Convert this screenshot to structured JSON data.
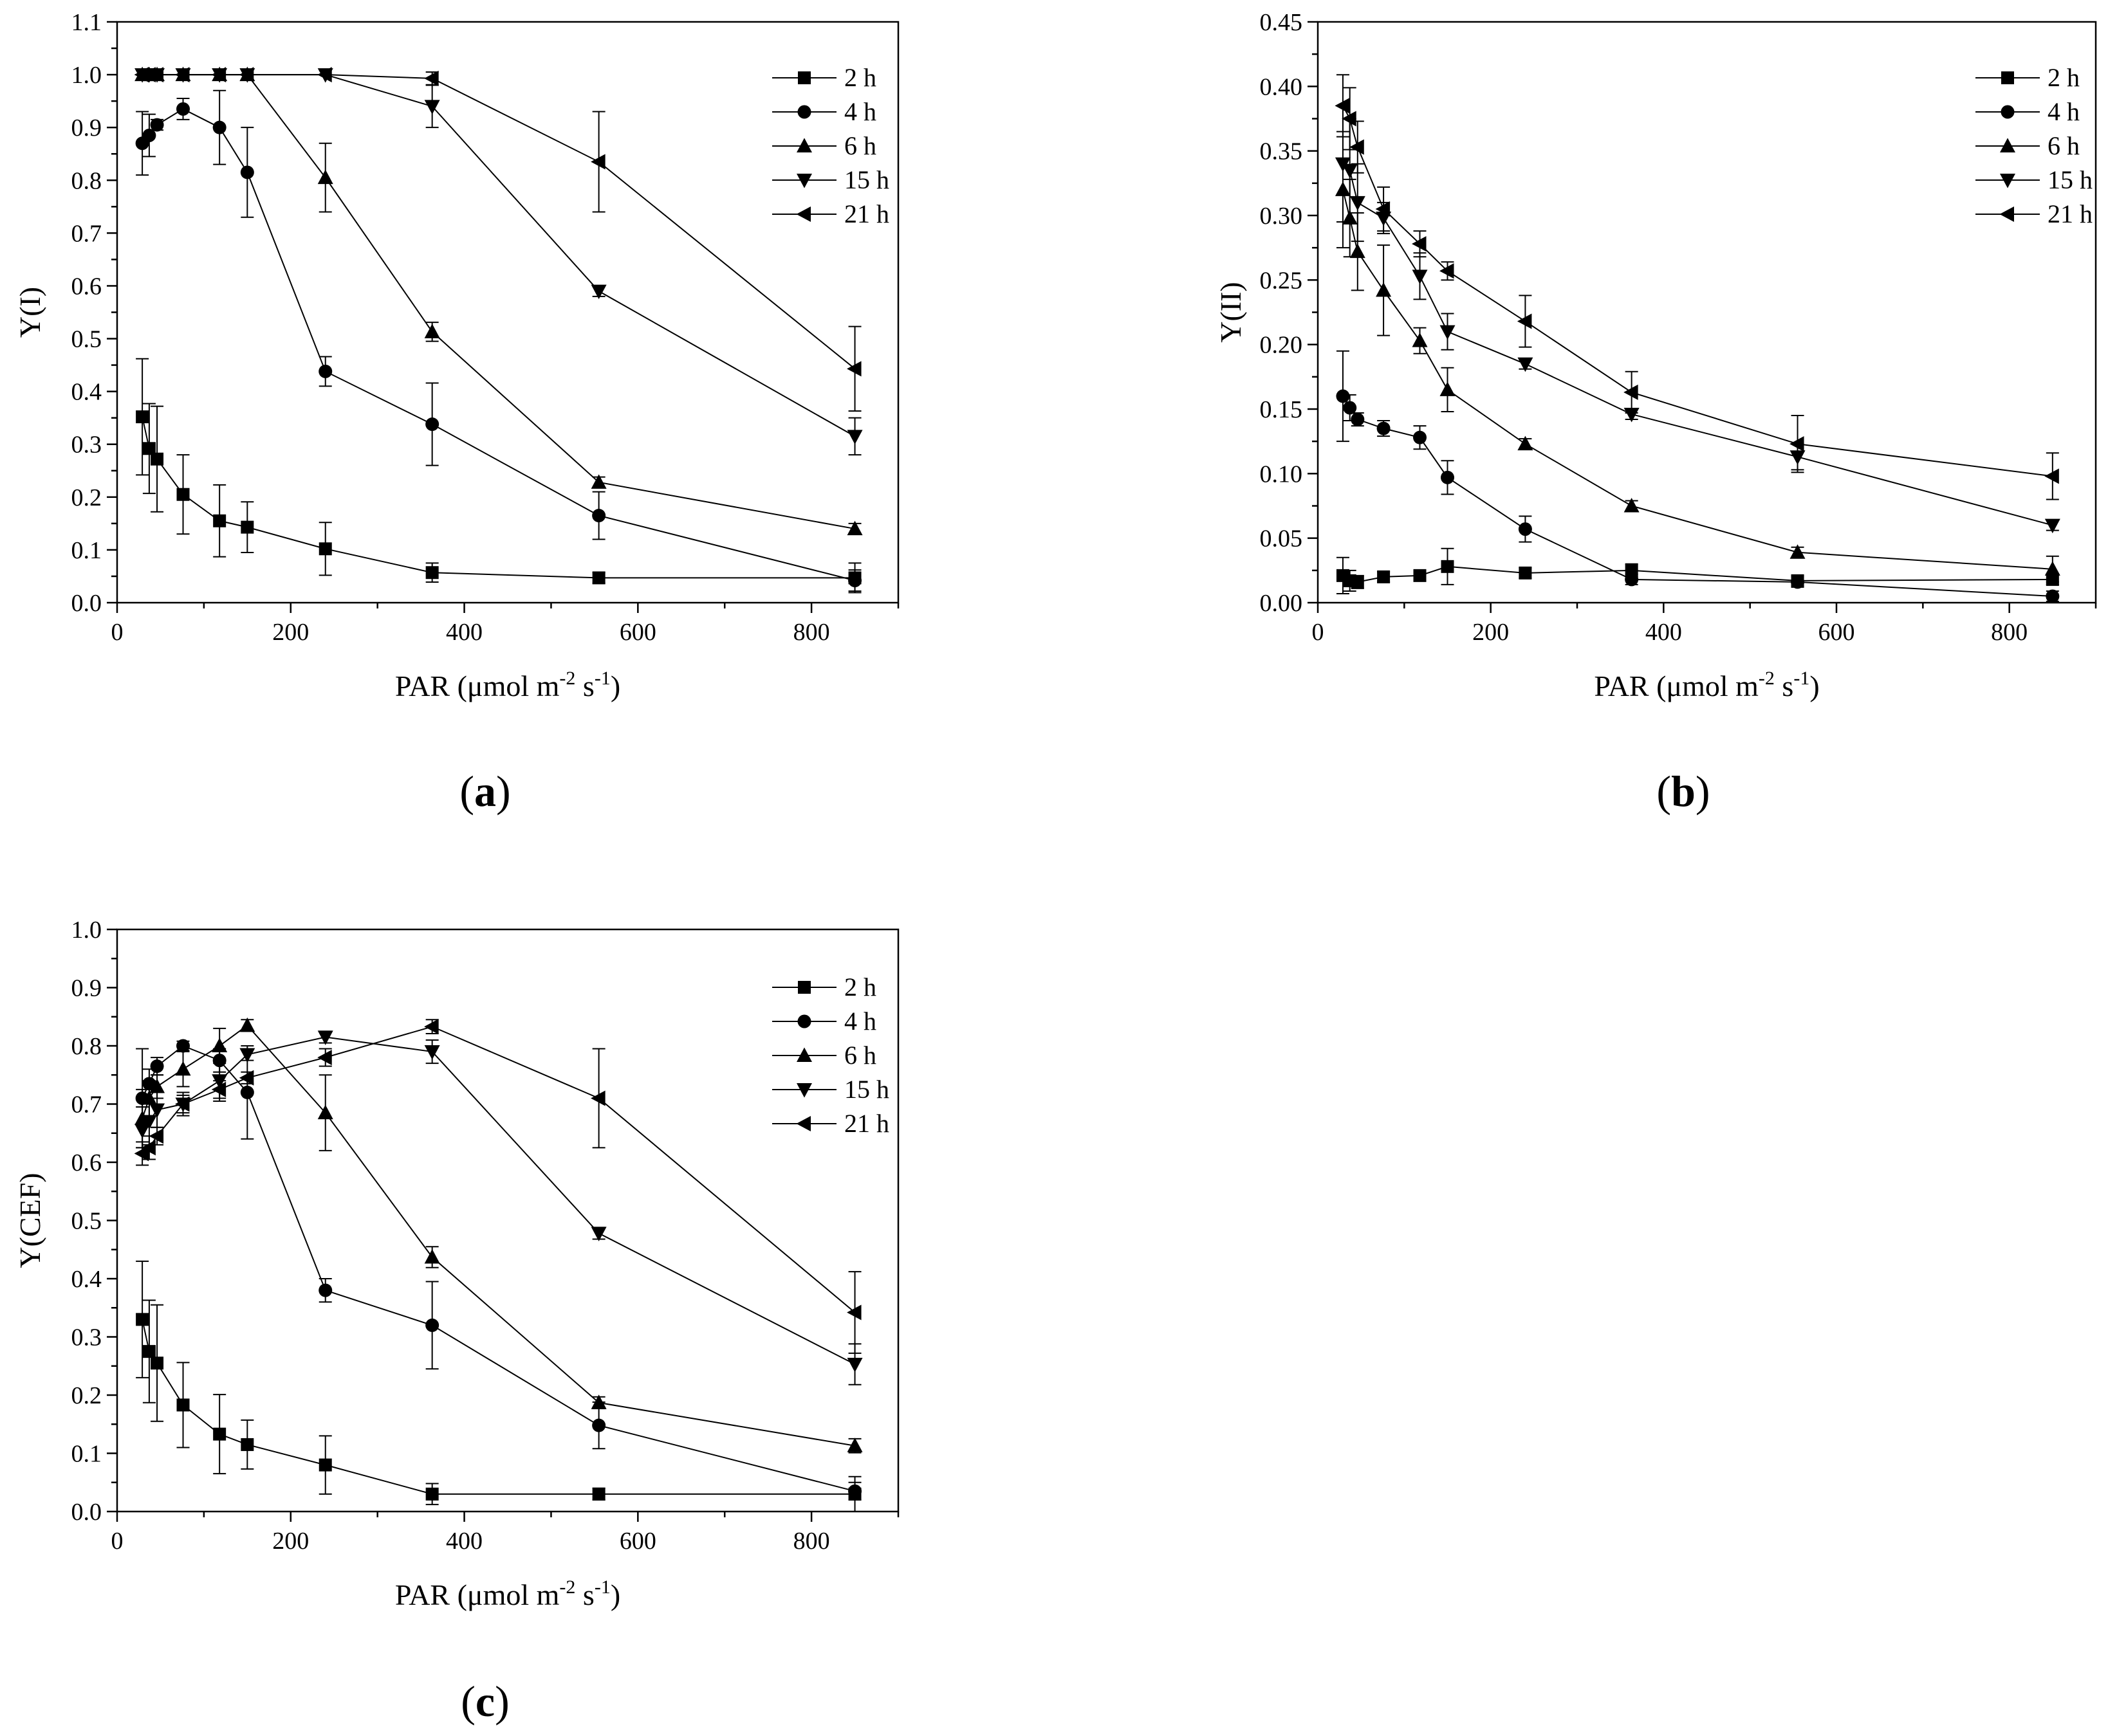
{
  "chart_data": [
    {
      "id": "a",
      "type": "line",
      "panel_label": "a",
      "ylabel": "Y(I)",
      "xlabel": {
        "pre": "PAR (μmol m",
        "sup1": "-2",
        "mid": " s",
        "sup2": "-1",
        "post": ")"
      },
      "xlim": [
        0,
        900
      ],
      "ylim": [
        0,
        1.1
      ],
      "xticks": [
        0,
        200,
        400,
        600,
        800
      ],
      "xtick_labels": [
        "0",
        "200",
        "400",
        "600",
        "800"
      ],
      "yticks": [
        0,
        0.1,
        0.2,
        0.3,
        0.4,
        0.5,
        0.6,
        0.7,
        0.8,
        0.9,
        1.0,
        1.1
      ],
      "ytick_labels": [
        "0.0",
        "0.1",
        "0.2",
        "0.3",
        "0.4",
        "0.5",
        "0.6",
        "0.7",
        "0.8",
        "0.9",
        "1.0",
        "1.1"
      ],
      "x": [
        29,
        37,
        46,
        76,
        118,
        150,
        240,
        363,
        555,
        850
      ],
      "series": [
        {
          "name": "2 h",
          "marker": "square",
          "values": [
            0.352,
            0.292,
            0.272,
            0.205,
            0.155,
            0.143,
            0.102,
            0.057,
            0.047,
            0.047
          ],
          "errors": [
            0.11,
            0.085,
            0.1,
            0.075,
            0.068,
            0.048,
            0.05,
            0.018,
            0.01,
            0.028
          ]
        },
        {
          "name": "4 h",
          "marker": "circle",
          "values": [
            0.87,
            0.885,
            0.905,
            0.935,
            0.9,
            0.815,
            0.438,
            0.338,
            0.165,
            0.042
          ],
          "errors": [
            0.06,
            0.04,
            0.01,
            0.02,
            0.07,
            0.085,
            0.028,
            0.078,
            0.045,
            0.02
          ]
        },
        {
          "name": "6 h",
          "marker": "triangle-up",
          "values": [
            1.0,
            1.0,
            1.0,
            1.0,
            1.0,
            1.0,
            0.805,
            0.513,
            0.228,
            0.14
          ],
          "errors": [
            0,
            0,
            0,
            0,
            0,
            0,
            0.065,
            0.018,
            0.01,
            0.01
          ]
        },
        {
          "name": "15 h",
          "marker": "triangle-down",
          "values": [
            1.0,
            1.0,
            1.0,
            1.0,
            1.0,
            1.0,
            1.0,
            0.94,
            0.59,
            0.315
          ],
          "errors": [
            0,
            0,
            0,
            0,
            0,
            0,
            0,
            0.04,
            0.01,
            0.035
          ]
        },
        {
          "name": "21 h",
          "marker": "triangle-left",
          "values": [
            1.0,
            1.0,
            1.0,
            1.0,
            1.0,
            1.0,
            1.0,
            0.993,
            0.835,
            0.443
          ],
          "errors": [
            0,
            0,
            0,
            0,
            0,
            0,
            0,
            0.012,
            0.095,
            0.08
          ]
        }
      ]
    },
    {
      "id": "b",
      "type": "line",
      "panel_label": "b",
      "ylabel": "Y(II)",
      "xlabel": {
        "pre": "PAR (μmol m",
        "sup1": "-2",
        "mid": " s",
        "sup2": "-1",
        "post": ")"
      },
      "xlim": [
        0,
        900
      ],
      "ylim": [
        0,
        0.45
      ],
      "xticks": [
        0,
        200,
        400,
        600,
        800
      ],
      "xtick_labels": [
        "0",
        "200",
        "400",
        "600",
        "800"
      ],
      "yticks": [
        0,
        0.05,
        0.1,
        0.15,
        0.2,
        0.25,
        0.3,
        0.35,
        0.4,
        0.45
      ],
      "ytick_labels": [
        "0.00",
        "0.05",
        "0.10",
        "0.15",
        "0.20",
        "0.25",
        "0.30",
        "0.35",
        "0.40",
        "0.45"
      ],
      "x": [
        29,
        37,
        46,
        76,
        118,
        150,
        240,
        363,
        555,
        850
      ],
      "series": [
        {
          "name": "2 h",
          "marker": "square",
          "values": [
            0.021,
            0.017,
            0.016,
            0.02,
            0.021,
            0.028,
            0.023,
            0.025,
            0.017,
            0.018
          ],
          "errors": [
            0.014,
            0.008,
            0.005,
            0.004,
            0.004,
            0.014,
            0.004,
            0.005,
            0.004,
            0.004
          ]
        },
        {
          "name": "4 h",
          "marker": "circle",
          "values": [
            0.16,
            0.151,
            0.142,
            0.135,
            0.128,
            0.097,
            0.057,
            0.018,
            0.016,
            0.005
          ],
          "errors": [
            0.035,
            0.01,
            0.005,
            0.006,
            0.009,
            0.013,
            0.01,
            0.004,
            0.004,
            0.004
          ]
        },
        {
          "name": "6 h",
          "marker": "triangle-up",
          "values": [
            0.32,
            0.298,
            0.272,
            0.242,
            0.203,
            0.165,
            0.123,
            0.075,
            0.039,
            0.026
          ],
          "errors": [
            0.045,
            0.03,
            0.03,
            0.035,
            0.01,
            0.017,
            0.004,
            0.004,
            0.004,
            0.01
          ]
        },
        {
          "name": "15 h",
          "marker": "triangle-down",
          "values": [
            0.34,
            0.335,
            0.31,
            0.298,
            0.253,
            0.21,
            0.185,
            0.146,
            0.113,
            0.06
          ],
          "errors": [
            0.045,
            0.04,
            0.03,
            0.012,
            0.018,
            0.014,
            0.004,
            0.004,
            0.01,
            0.004
          ]
        },
        {
          "name": "21 h",
          "marker": "triangle-left",
          "values": [
            0.385,
            0.375,
            0.353,
            0.305,
            0.278,
            0.257,
            0.218,
            0.163,
            0.123,
            0.098
          ],
          "errors": [
            0.024,
            0.024,
            0.02,
            0.017,
            0.01,
            0.007,
            0.02,
            0.016,
            0.022,
            0.018
          ]
        }
      ]
    },
    {
      "id": "c",
      "type": "line",
      "panel_label": "c",
      "ylabel": "Y(CEF)",
      "xlabel": {
        "pre": "PAR (μmol m",
        "sup1": "-2",
        "mid": " s",
        "sup2": "-1",
        "post": ")"
      },
      "xlim": [
        0,
        900
      ],
      "ylim": [
        0,
        1.0
      ],
      "xticks": [
        0,
        200,
        400,
        600,
        800
      ],
      "xtick_labels": [
        "0",
        "200",
        "400",
        "600",
        "800"
      ],
      "yticks": [
        0,
        0.1,
        0.2,
        0.3,
        0.4,
        0.5,
        0.6,
        0.7,
        0.8,
        0.9,
        1.0
      ],
      "ytick_labels": [
        "0.0",
        "0.1",
        "0.2",
        "0.3",
        "0.4",
        "0.5",
        "0.6",
        "0.7",
        "0.8",
        "0.9",
        "1.0"
      ],
      "x": [
        29,
        37,
        46,
        76,
        118,
        150,
        240,
        363,
        555,
        850
      ],
      "series": [
        {
          "name": "2 h",
          "marker": "square",
          "values": [
            0.33,
            0.275,
            0.255,
            0.183,
            0.133,
            0.115,
            0.08,
            0.03,
            0.03,
            0.03
          ],
          "errors": [
            0.1,
            0.088,
            0.1,
            0.073,
            0.068,
            0.042,
            0.05,
            0.018,
            0.01,
            0.03
          ]
        },
        {
          "name": "4 h",
          "marker": "circle",
          "values": [
            0.71,
            0.735,
            0.765,
            0.8,
            0.775,
            0.72,
            0.38,
            0.32,
            0.148,
            0.035
          ],
          "errors": [
            0.085,
            0.025,
            0.015,
            0.008,
            0.02,
            0.08,
            0.02,
            0.075,
            0.04,
            0.015
          ]
        },
        {
          "name": "6 h",
          "marker": "triangle-up",
          "values": [
            0.675,
            0.71,
            0.73,
            0.76,
            0.8,
            0.835,
            0.685,
            0.437,
            0.187,
            0.113
          ],
          "errors": [
            0.05,
            0.03,
            0.02,
            0.03,
            0.03,
            0.01,
            0.065,
            0.018,
            0.01,
            0.012
          ]
        },
        {
          "name": "15 h",
          "marker": "triangle-down",
          "values": [
            0.655,
            0.67,
            0.69,
            0.7,
            0.74,
            0.785,
            0.815,
            0.79,
            0.478,
            0.253
          ],
          "errors": [
            0.04,
            0.04,
            0.03,
            0.02,
            0.035,
            0.01,
            0.01,
            0.02,
            0.01,
            0.035
          ]
        },
        {
          "name": "21 h",
          "marker": "triangle-left",
          "values": [
            0.615,
            0.625,
            0.645,
            0.7,
            0.725,
            0.745,
            0.78,
            0.833,
            0.71,
            0.342
          ],
          "errors": [
            0.02,
            0.02,
            0.015,
            0.015,
            0.015,
            0.01,
            0.015,
            0.012,
            0.085,
            0.07
          ]
        }
      ]
    }
  ]
}
